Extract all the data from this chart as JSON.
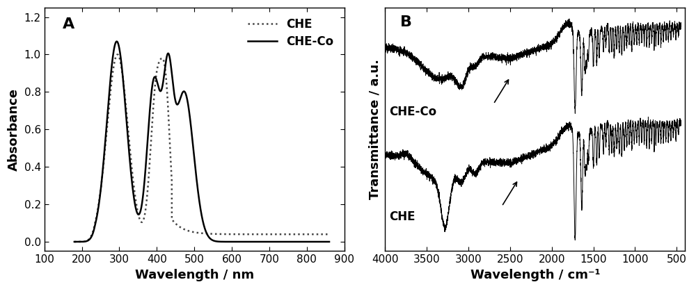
{
  "panel_A": {
    "label": "A",
    "xlabel": "Wavelength / nm",
    "ylabel": "Absorbance",
    "xlim": [
      100,
      900
    ],
    "ylim": [
      -0.05,
      1.25
    ],
    "xticks": [
      100,
      200,
      300,
      400,
      500,
      600,
      700,
      800,
      900
    ],
    "yticks": [
      0.0,
      0.2,
      0.4,
      0.6,
      0.8,
      1.0,
      1.2
    ],
    "legend_CHE": "CHE",
    "legend_CHECo": "CHE-Co"
  },
  "panel_B": {
    "label": "B",
    "xlabel": "Wavelength / cm⁻¹",
    "ylabel": "Transmittance / a.u.",
    "xticks": [
      4000,
      3500,
      3000,
      2500,
      2000,
      1500,
      1000,
      500
    ],
    "legend_CHECo": "CHE-Co",
    "legend_CHE": "CHE"
  },
  "figure_bg": "#ffffff",
  "line_color": "#000000",
  "fontsize_label": 13,
  "fontsize_tick": 11,
  "fontsize_legend": 12,
  "fontsize_panel_label": 14
}
